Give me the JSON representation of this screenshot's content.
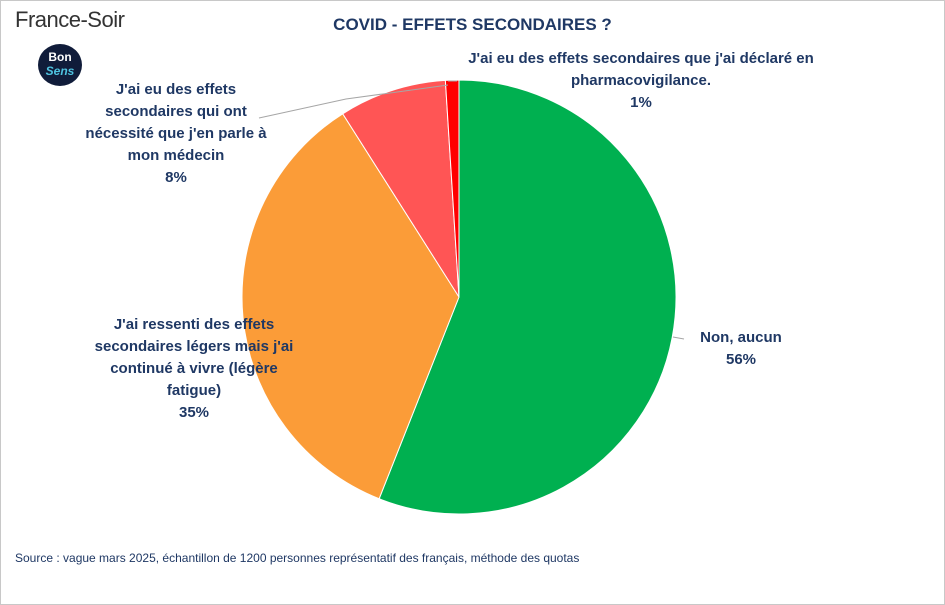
{
  "brand": "France-Soir",
  "badge": {
    "line1": "Bon",
    "line2": "Sens"
  },
  "chart_data": {
    "type": "pie",
    "title": "COVID - EFFETS SECONDAIRES ?",
    "categories": [
      "Non, aucun",
      "J'ai ressenti des effets secondaires légers mais j'ai continué à vivre (légère fatigue)",
      "J'ai eu des effets secondaires qui ont nécessité que j'en parle à mon médecin",
      "J'ai eu des effets secondaires que j'ai déclaré en pharmacovigilance."
    ],
    "values": [
      56,
      35,
      8,
      1
    ],
    "value_labels": [
      "56%",
      "35%",
      "8%",
      "1%"
    ],
    "colors": [
      "#00b050",
      "#fb9c38",
      "#ff5555",
      "#ff0000"
    ]
  },
  "source": "Source : vague mars 2025, échantillon de 1200 personnes représentatif des français, méthode des quotas"
}
